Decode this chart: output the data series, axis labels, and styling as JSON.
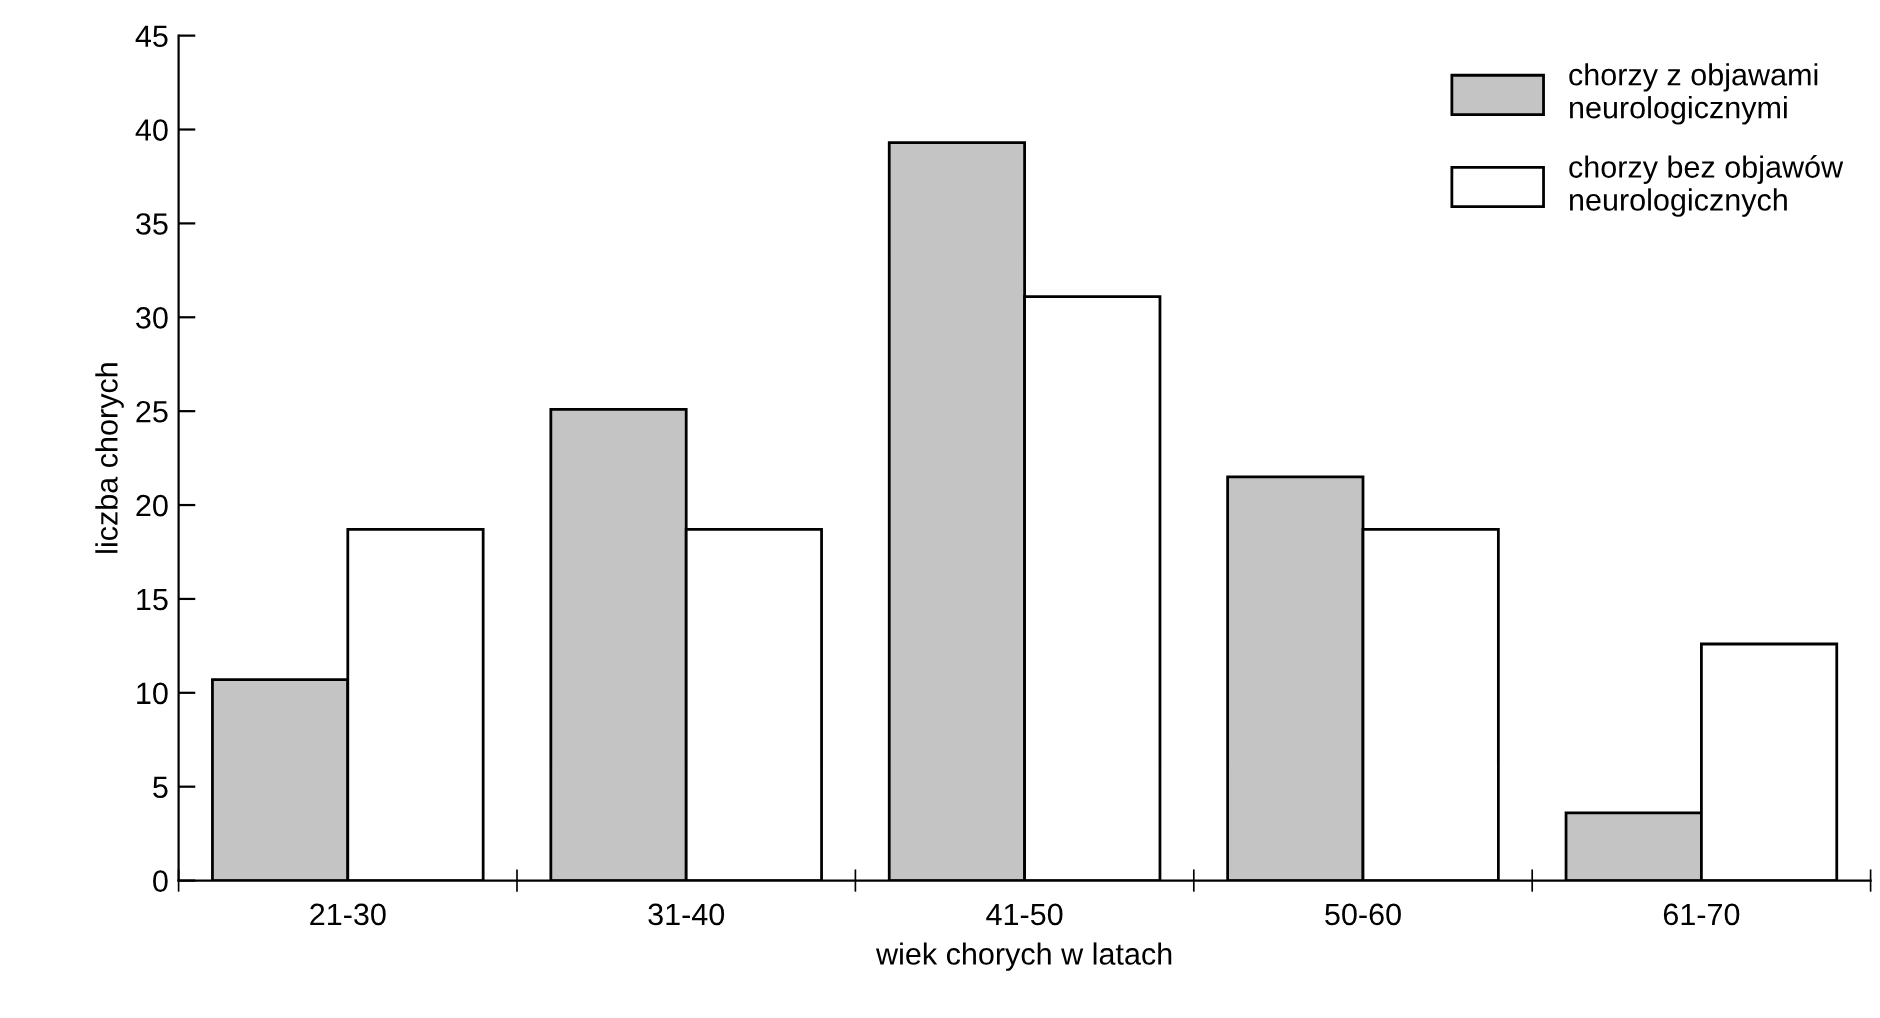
{
  "chart_data": {
    "type": "bar",
    "xlabel": "wiek chorych w latach",
    "ylabel": "liczba chorych",
    "categories": [
      "21-30",
      "31-40",
      "41-50",
      "50-60",
      "61-70"
    ],
    "series": [
      {
        "name": "chorzy z objawami\nneurologicznymi",
        "color": "#c4c4c4",
        "values": [
          10.7,
          25.1,
          39.3,
          21.5,
          3.6
        ]
      },
      {
        "name": "chorzy bez objawów\nneurologicznych",
        "color": "#ffffff",
        "values": [
          18.7,
          18.7,
          31.1,
          18.7,
          12.6
        ]
      }
    ],
    "ylim": [
      0,
      45
    ],
    "yticks": [
      0,
      5,
      10,
      15,
      20,
      25,
      30,
      35,
      40,
      45
    ],
    "grid": false,
    "legend": "top right"
  }
}
